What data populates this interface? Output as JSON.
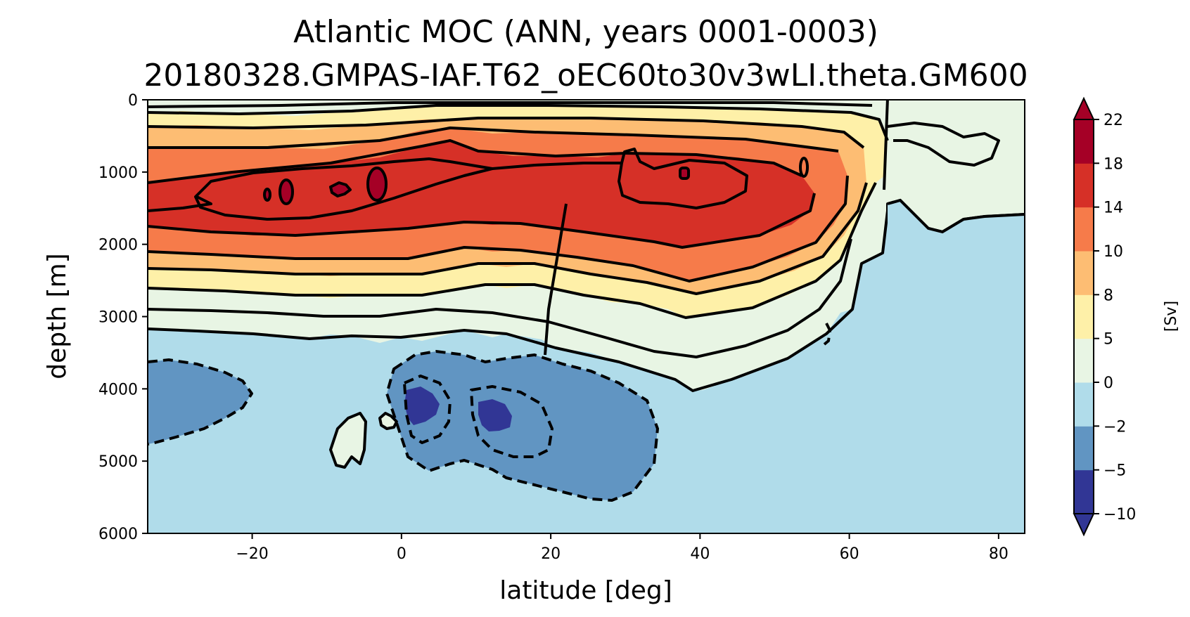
{
  "chart_data": {
    "type": "contour",
    "title": "Atlantic MOC (ANN, years 0001-0003)",
    "subtitle": "20180328.GMPAS-IAF.T62_oEC60to30v3wLI.theta.GM600",
    "xlabel": "latitude [deg]",
    "ylabel": "depth [m]",
    "xlim": [
      -34,
      83.5
    ],
    "ylim": [
      6000,
      0
    ],
    "x_ticks": [
      -20,
      0,
      20,
      40,
      60,
      80
    ],
    "x_tick_labels": [
      "−20",
      "0",
      "20",
      "40",
      "60",
      "80"
    ],
    "y_ticks": [
      0,
      1000,
      2000,
      3000,
      4000,
      5000,
      6000
    ],
    "y_tick_labels": [
      "0",
      "1000",
      "2000",
      "3000",
      "4000",
      "5000",
      "6000"
    ],
    "colorbar": {
      "label": "[Sv]",
      "levels": [
        -10,
        -5,
        -2,
        0,
        5,
        8,
        10,
        14,
        18,
        22
      ],
      "tick_labels": [
        "−10",
        "−5",
        "−2",
        "0",
        "5",
        "8",
        "10",
        "14",
        "18",
        "22"
      ],
      "colors": [
        "#313695",
        "#6195c2",
        "#b0dcea",
        "#e8f5e4",
        "#fef0a8",
        "#fdbd73",
        "#f67b4a",
        "#d63027",
        "#a50026"
      ],
      "extend": "both",
      "under_color": "#313695",
      "over_color": "#a50026"
    },
    "features": {
      "max_cell_center": {
        "lat": 0,
        "depth": 1300,
        "value_range": "18-22"
      },
      "secondary_max": {
        "lat": 38,
        "depth": 1050,
        "value_range": "18-22"
      },
      "negative_cells": [
        {
          "lat": 2,
          "depth": 4100,
          "value_range": "<-5"
        },
        {
          "lat": 13,
          "depth": 4300,
          "value_range": "<-5"
        }
      ],
      "contour_line_style": "solid for positive, dashed for negative"
    }
  }
}
